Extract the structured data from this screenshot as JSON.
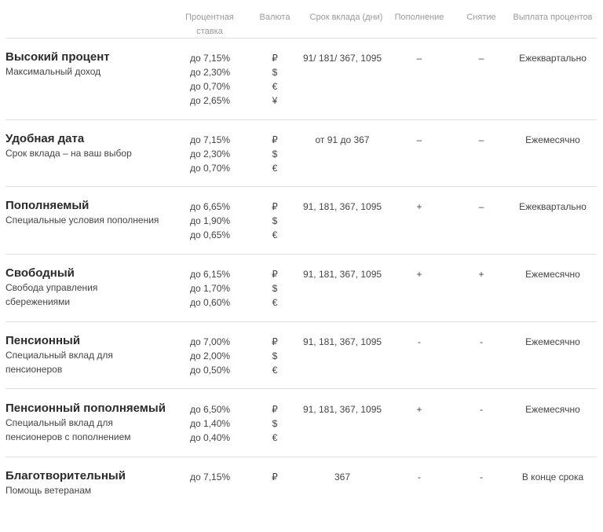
{
  "headers": {
    "rate": "Процентная ставка",
    "currency": "Валюта",
    "term": "Срок вклада (дни)",
    "replenish": "Пополнение",
    "withdraw": "Снятие",
    "payout": "Выплата процентов"
  },
  "deposits": [
    {
      "name": "Высокий процент",
      "description": "Максимальный доход",
      "rates": [
        "до 7,15%",
        "до 2,30%",
        "до 0,70%",
        "до 2,65%"
      ],
      "currencies": [
        "₽",
        "$",
        "€",
        "¥"
      ],
      "term": "91/ 181/ 367, 1095",
      "replenish": "–",
      "withdraw": "–",
      "payout": "Ежеквартально"
    },
    {
      "name": "Удобная дата",
      "description": "Срок вклада – на ваш выбор",
      "rates": [
        "до 7,15%",
        "до 2,30%",
        "до 0,70%"
      ],
      "currencies": [
        "₽",
        "$",
        "€"
      ],
      "term": "от 91 до 367",
      "replenish": "–",
      "withdraw": "–",
      "payout": "Ежемесячно"
    },
    {
      "name": "Пополняемый",
      "description": "Специальные условия пополнения",
      "rates": [
        "до 6,65%",
        "до 1,90%",
        "до 0,65%"
      ],
      "currencies": [
        "₽",
        "$",
        "€"
      ],
      "term": "91, 181, 367, 1095",
      "replenish": "+",
      "withdraw": "–",
      "payout": "Ежеквартально"
    },
    {
      "name": "Свободный",
      "description": "Свобода управления сбережениями",
      "rates": [
        "до 6,15%",
        "до 1,70%",
        "до 0,60%"
      ],
      "currencies": [
        "₽",
        "$",
        "€"
      ],
      "term": "91, 181, 367, 1095",
      "replenish": "+",
      "withdraw": "+",
      "payout": "Ежемесячно"
    },
    {
      "name": "Пенсионный",
      "description": "Специальный вклад для пенсионеров",
      "rates": [
        "до 7,00%",
        "до 2,00%",
        "до 0,50%"
      ],
      "currencies": [
        "₽",
        "$",
        "€"
      ],
      "term": "91, 181, 367, 1095",
      "replenish": "-",
      "withdraw": "-",
      "payout": "Ежемесячно"
    },
    {
      "name": "Пенсионный пополняемый",
      "description": "Специальный вклад для пенсионеров с пополнением",
      "rates": [
        "до 6,50%",
        "до 1,40%",
        "до 0,40%"
      ],
      "currencies": [
        "₽",
        "$",
        "€"
      ],
      "term": "91, 181, 367, 1095",
      "replenish": "+",
      "withdraw": "-",
      "payout": "Ежемесячно"
    },
    {
      "name": "Благотворительный",
      "description": "Помощь ветеранам",
      "rates": [
        "до 7,15%"
      ],
      "currencies": [
        "₽"
      ],
      "term": "367",
      "replenish": "-",
      "withdraw": "-",
      "payout": "В конце срока"
    }
  ]
}
